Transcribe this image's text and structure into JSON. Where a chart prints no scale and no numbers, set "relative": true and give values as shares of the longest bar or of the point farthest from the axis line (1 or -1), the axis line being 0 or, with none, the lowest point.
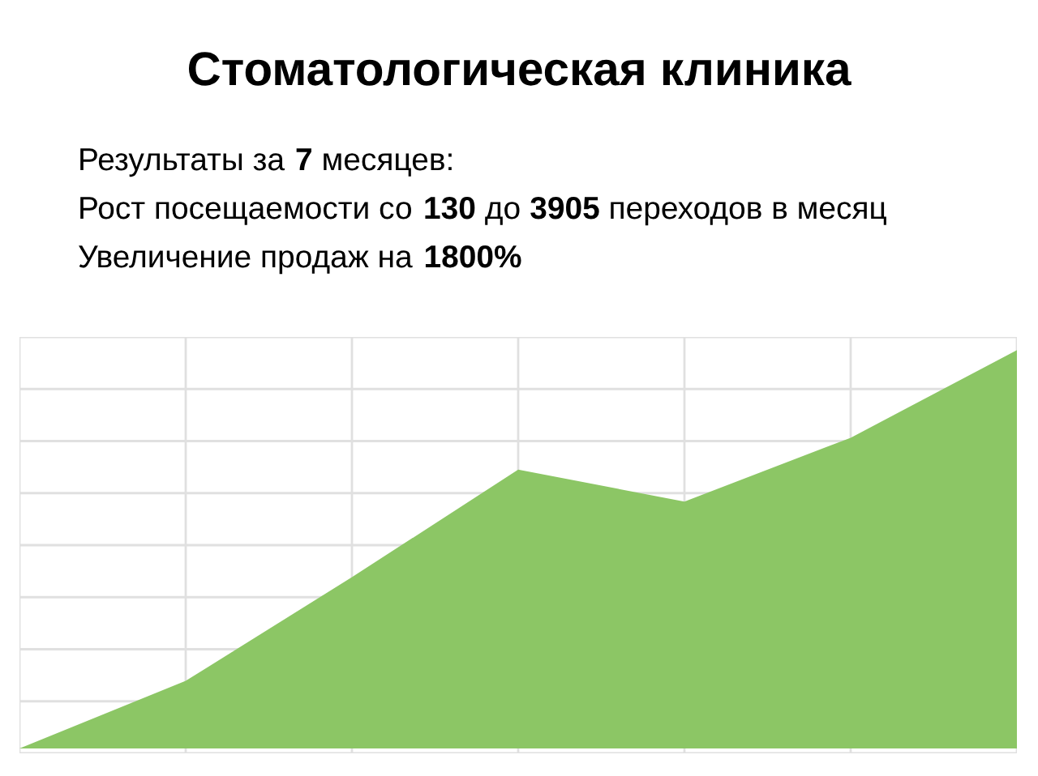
{
  "chart_data": {
    "type": "area",
    "title": "Стоматологическая клиника",
    "subtitle": "Результаты за 7 месяцев:",
    "annotations": [
      "Рост посещаемости со 130 до 3905 переходов в месяц",
      "Увеличение продаж на 1800%"
    ],
    "categories": [
      null,
      null,
      null,
      null,
      null,
      null,
      null
    ],
    "series": [
      {
        "color": "#8cc665",
        "values": [
          0,
          0.17,
          0.43,
          0.7,
          0.62,
          0.78,
          1
        ]
      }
    ],
    "relative": true,
    "grid": true,
    "legend": false
  }
}
